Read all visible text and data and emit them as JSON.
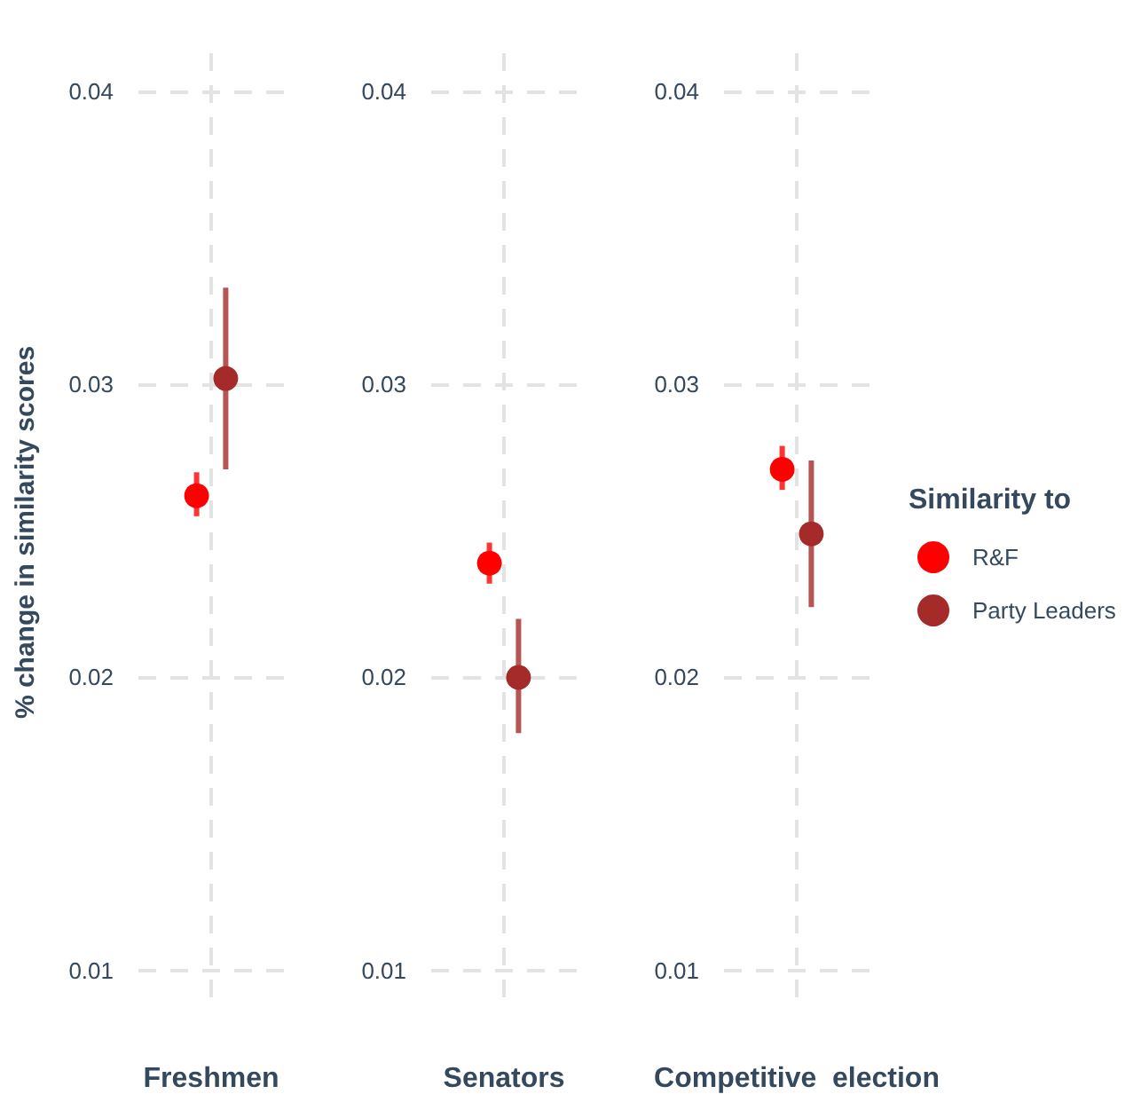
{
  "chart_data": [
    {
      "type": "scatter",
      "xlabel": "Freshmen",
      "ylabel": "% change in similarity scores",
      "categories": [
        null
      ],
      "ylim": [
        0.0086,
        0.0413
      ],
      "yticks": [
        0.01,
        0.02,
        0.03,
        0.04
      ],
      "grid": true,
      "legend": false,
      "marker": "circle",
      "series": [
        {
          "color": "#ff0000",
          "values": [
            0.0262
          ],
          "errors": [
            [
              0.0255,
              0.027
            ]
          ]
        },
        {
          "color": "#a52a2a",
          "values": [
            0.0302
          ],
          "errors": [
            [
              0.0271,
              0.0333
            ]
          ]
        }
      ]
    },
    {
      "type": "scatter",
      "xlabel": "Senators",
      "categories": [
        null
      ],
      "ylim": [
        0.0086,
        0.0413
      ],
      "yticks": [
        0.01,
        0.02,
        0.03,
        0.04
      ],
      "grid": true,
      "legend": false,
      "marker": "circle",
      "series": [
        {
          "color": "#ff0000",
          "values": [
            0.0239
          ],
          "errors": [
            [
              0.0232,
              0.0246
            ]
          ]
        },
        {
          "color": "#a52a2a",
          "values": [
            0.02
          ],
          "errors": [
            [
              0.0181,
              0.022
            ]
          ]
        }
      ]
    },
    {
      "type": "scatter",
      "xlabel": "Competitive  election",
      "legend_title": "Similarity to",
      "categories": [
        null
      ],
      "ylim": [
        0.0086,
        0.0413
      ],
      "yticks": [
        0.01,
        0.02,
        0.03,
        0.04
      ],
      "grid": true,
      "legend": "right",
      "marker": "circle",
      "series": [
        {
          "name": "R&F",
          "color": "#ff0000",
          "values": [
            0.0271
          ],
          "errors": [
            [
              0.0264,
              0.0279
            ]
          ]
        },
        {
          "name": "Party Leaders",
          "color": "#a52a2a",
          "values": [
            0.0249
          ],
          "errors": [
            [
              0.0224,
              0.0274
            ]
          ]
        }
      ]
    }
  ]
}
